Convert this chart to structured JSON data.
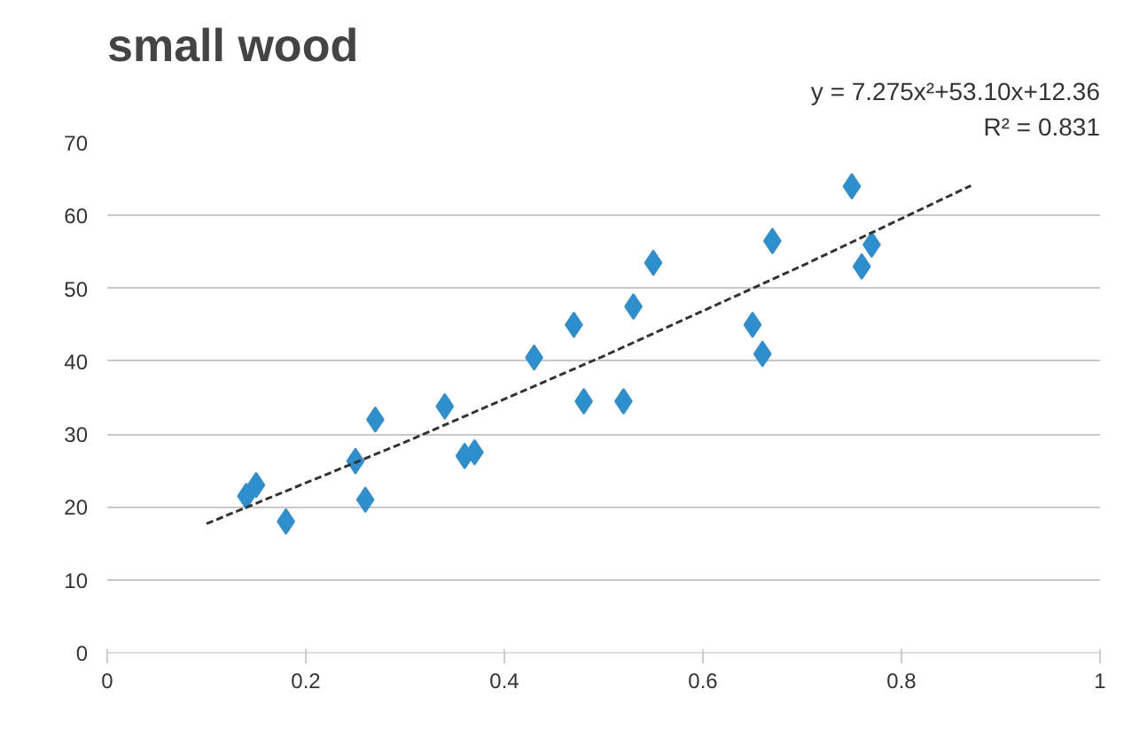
{
  "chart_data": {
    "type": "scatter",
    "title": "small wood",
    "annotations": [
      "y = 7.275x²+53.10x+12.36",
      "R² = 0.831"
    ],
    "xlim": [
      0,
      1
    ],
    "xticks": [
      0,
      0.2,
      0.4,
      0.6,
      0.8,
      1
    ],
    "ylim": [
      0,
      70
    ],
    "yticks": [
      0,
      10,
      20,
      30,
      40,
      50,
      60,
      70
    ],
    "grid": "y",
    "marker": "diamond",
    "series": [
      {
        "color": "#2e8fcf",
        "x": [
          0.14,
          0.15,
          0.18,
          0.25,
          0.26,
          0.27,
          0.34,
          0.36,
          0.37,
          0.43,
          0.47,
          0.48,
          0.52,
          0.53,
          0.55,
          0.65,
          0.66,
          0.67,
          0.75,
          0.76,
          0.77
        ],
        "values": [
          21.5,
          23,
          18,
          26.3,
          21,
          32,
          33.8,
          27,
          27.5,
          40.5,
          45,
          34.5,
          34.5,
          47.5,
          53.5,
          45,
          41,
          56.5,
          64,
          53,
          56
        ]
      },
      {
        "type": "line",
        "color": "#333333",
        "line_style": "dashed",
        "marker": "none",
        "x": [
          0.1,
          0.3,
          0.5,
          0.7,
          0.87
        ],
        "values": [
          17.7,
          28.9,
          40.7,
          53.1,
          64.1
        ]
      }
    ]
  }
}
